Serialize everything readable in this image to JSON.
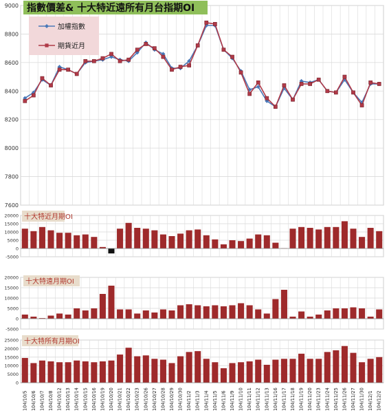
{
  "colors": {
    "index_line": "#4a78b8",
    "futures_line": "#b03a48",
    "bar": "#9e2a2b",
    "bar_negative": "#111111",
    "grid": "#d9d9d9",
    "title_bg": "#8fbf5a",
    "legend_bg": "#f2d8da",
    "panel_title_bg": "#e8dccb"
  },
  "chart_data": [
    {
      "type": "line",
      "title": "指數價差& 十大特近遠所有月台指期OI",
      "x_labels": [
        "104/10/5",
        "104/10/6",
        "104/10/7",
        "104/10/8",
        "104/10/12",
        "104/10/13",
        "104/10/14",
        "104/10/15",
        "104/10/16",
        "104/10/19",
        "104/10/20",
        "104/10/21",
        "104/10/22",
        "104/10/23",
        "104/10/26",
        "104/10/27",
        "104/10/28",
        "104/10/29",
        "104/10/30",
        "104/11/2",
        "104/11/3",
        "104/11/4",
        "104/11/5",
        "104/11/6",
        "104/11/9",
        "104/11/10",
        "104/11/11",
        "104/11/12",
        "104/11/13",
        "104/11/16",
        "104/11/17",
        "104/11/18",
        "104/11/19",
        "104/11/20",
        "104/11/23",
        "104/11/24",
        "104/11/25",
        "104/11/26",
        "104/11/27",
        "104/11/30",
        "104/12/1",
        "104/12/2"
      ],
      "ylim": [
        7600,
        9000
      ],
      "y_ticks": [
        7600,
        7800,
        8000,
        8200,
        8400,
        8600,
        8800,
        9000
      ],
      "grid": true,
      "legend_position": "top-left",
      "series": [
        {
          "name": "加權指數",
          "values": [
            8350,
            8390,
            8480,
            8440,
            8570,
            8550,
            8520,
            8600,
            8610,
            8620,
            8640,
            8620,
            8610,
            8670,
            8740,
            8690,
            8660,
            8560,
            8560,
            8610,
            8720,
            8860,
            8860,
            8690,
            8630,
            8540,
            8410,
            8430,
            8330,
            8290,
            8420,
            8340,
            8470,
            8460,
            8480,
            8400,
            8390,
            8480,
            8390,
            8320,
            8450,
            8450
          ]
        },
        {
          "name": "期貨近月",
          "values": [
            8330,
            8370,
            8490,
            8440,
            8550,
            8550,
            8520,
            8610,
            8610,
            8630,
            8660,
            8610,
            8620,
            8690,
            8730,
            8700,
            8640,
            8550,
            8570,
            8580,
            8720,
            8880,
            8870,
            8690,
            8640,
            8530,
            8380,
            8460,
            8350,
            8290,
            8440,
            8340,
            8450,
            8450,
            8480,
            8400,
            8390,
            8500,
            8390,
            8300,
            8460,
            8450
          ]
        }
      ]
    },
    {
      "type": "bar",
      "title": "十大特近月期OI",
      "ylim": [
        -5000,
        20000
      ],
      "y_ticks": [
        -5000,
        0,
        5000,
        10000,
        15000,
        20000
      ],
      "grid": true,
      "values": [
        12000,
        10500,
        13000,
        11000,
        9500,
        9500,
        8000,
        8500,
        7000,
        900,
        -3000,
        12000,
        15500,
        12500,
        12000,
        11000,
        8500,
        7500,
        9000,
        11000,
        11500,
        8000,
        5500,
        2500,
        5000,
        4500,
        6000,
        8500,
        8000,
        3500,
        200,
        12000,
        13000,
        12500,
        11500,
        13000,
        13000,
        16500,
        12000,
        7000,
        12500,
        10500
      ]
    },
    {
      "type": "bar",
      "title": "十大特遠月期OI",
      "ylim": [
        -5000,
        20000
      ],
      "y_ticks": [
        -5000,
        0,
        5000,
        10000,
        15000,
        20000
      ],
      "grid": true,
      "values": [
        2000,
        1000,
        300,
        1500,
        2500,
        2000,
        5000,
        4000,
        5000,
        12000,
        16000,
        4500,
        4500,
        2500,
        4000,
        3000,
        4500,
        4000,
        6500,
        7000,
        6500,
        6000,
        6500,
        6000,
        6500,
        7500,
        6500,
        4500,
        2500,
        9500,
        14000,
        1000,
        3500,
        1000,
        2000,
        4000,
        5000,
        5000,
        5500,
        5000,
        1000,
        4500
      ]
    },
    {
      "type": "bar",
      "title": "十大特所有月期OI",
      "ylim": [
        0,
        25000
      ],
      "y_ticks": [
        0,
        5000,
        10000,
        15000,
        20000,
        25000
      ],
      "grid": true,
      "values": [
        14500,
        11500,
        13000,
        12500,
        12000,
        12000,
        13000,
        12500,
        12000,
        12500,
        13000,
        16500,
        20500,
        15500,
        16000,
        14000,
        13500,
        11500,
        15500,
        18000,
        18500,
        14000,
        12000,
        8500,
        11500,
        12000,
        12500,
        13500,
        10500,
        13500,
        14000,
        14000,
        17000,
        14000,
        14000,
        18000,
        19000,
        21500,
        17500,
        12000,
        14000,
        15000
      ]
    }
  ]
}
